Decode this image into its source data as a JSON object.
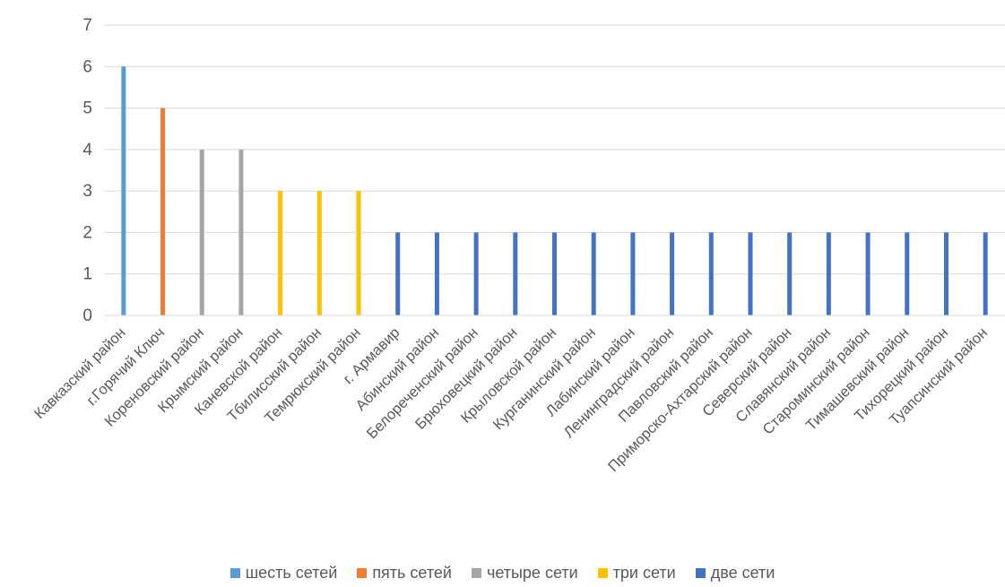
{
  "chart_data": {
    "type": "bar",
    "ylim": [
      0,
      7
    ],
    "yticks": [
      0,
      1,
      2,
      3,
      4,
      5,
      6,
      7
    ],
    "grid": true,
    "legend_position": "bottom",
    "categories": [
      "Кавказский район",
      "г.Горячий Ключ",
      "Кореновский район",
      "Крымский район",
      "Каневской район",
      "Тбилисский район",
      "Темрюкский район",
      "г. Армавир",
      "Абинский район",
      "Белореченский район",
      "Брюховецкий район",
      "Крыловской район",
      "Курганинский район",
      "Лабинский район",
      "Ленинградский район",
      "Павловский район",
      "Приморско-Ахтарский район",
      "Северский район",
      "Славянский район",
      "Староминский район",
      "Тимашевский район",
      "Тихорецкий район",
      "Туапсинский район"
    ],
    "values": [
      6,
      5,
      4,
      4,
      3,
      3,
      3,
      2,
      2,
      2,
      2,
      2,
      2,
      2,
      2,
      2,
      2,
      2,
      2,
      2,
      2,
      2,
      2
    ],
    "series_index": [
      0,
      1,
      2,
      2,
      3,
      3,
      3,
      4,
      4,
      4,
      4,
      4,
      4,
      4,
      4,
      4,
      4,
      4,
      4,
      4,
      4,
      4,
      4
    ],
    "series": [
      {
        "name": "шесть сетей",
        "color": "#5B9BD5"
      },
      {
        "name": "пять сетей",
        "color": "#ED7D31"
      },
      {
        "name": "четыре сети",
        "color": "#A5A5A5"
      },
      {
        "name": "три сети",
        "color": "#FFC000"
      },
      {
        "name": "две сети",
        "color": "#4472C4"
      }
    ]
  }
}
